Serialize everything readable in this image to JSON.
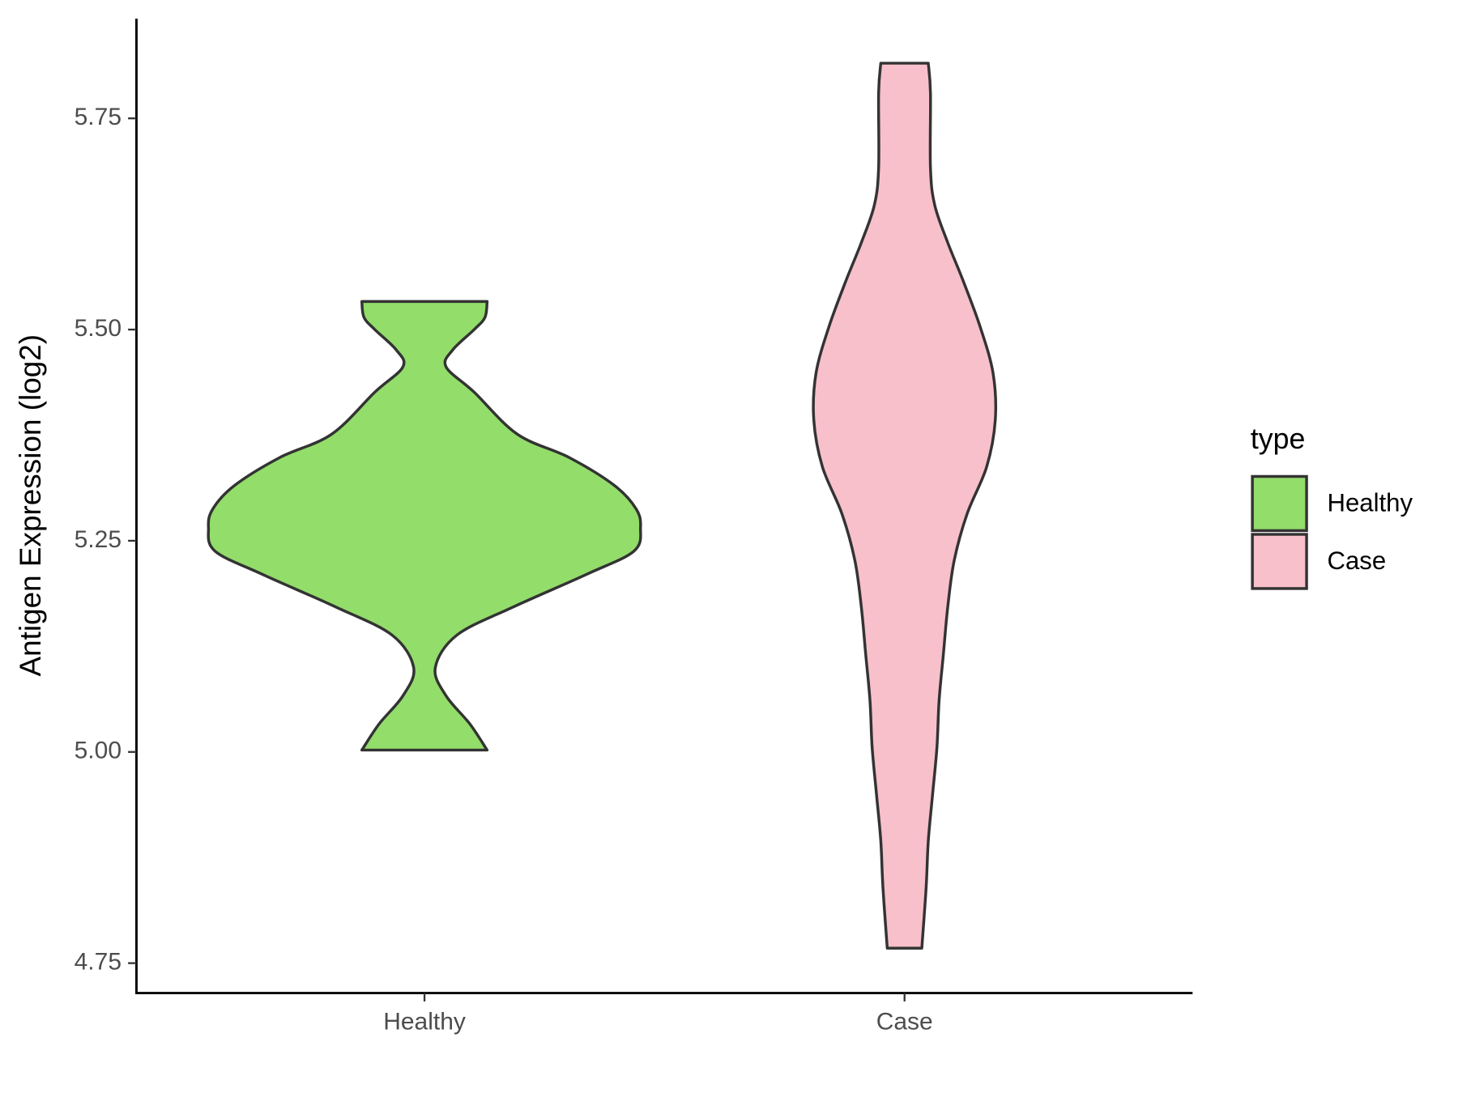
{
  "chart_data": {
    "type": "violin",
    "ylabel": "Antigen Expression (log2)",
    "legend_title": "type",
    "categories": [
      "Healthy",
      "Case"
    ],
    "series": [
      {
        "name": "Healthy",
        "color": "#93dd6b",
        "y": [
          5.5332,
          5.5144,
          5.5,
          5.4757,
          5.4558,
          5.4259,
          5.3761,
          5.3485,
          5.3153,
          5.2876,
          5.2655,
          5.2378,
          5.2102,
          5.1715,
          5.1383,
          5.0996,
          5.0664,
          5.0332,
          5.0022
        ],
        "density": [
          0.29,
          0.28,
          0.23,
          0.13,
          0.1,
          0.23,
          0.43,
          0.67,
          0.88,
          0.98,
          1.0,
          0.97,
          0.75,
          0.41,
          0.15,
          0.05,
          0.1,
          0.21,
          0.29
        ]
      },
      {
        "name": "Case",
        "color": "#f7c0cb",
        "y": [
          5.8153,
          5.7799,
          5.6914,
          5.6471,
          5.6029,
          5.5586,
          5.5033,
          5.448,
          5.3927,
          5.3374,
          5.2821,
          5.2268,
          5.1715,
          5.1162,
          5.0608,
          5.0055,
          4.9502,
          4.8949,
          4.8396,
          4.7677
        ],
        "density": [
          0.11,
          0.12,
          0.12,
          0.14,
          0.2,
          0.27,
          0.35,
          0.41,
          0.42,
          0.38,
          0.29,
          0.23,
          0.2,
          0.18,
          0.16,
          0.15,
          0.13,
          0.11,
          0.1,
          0.08
        ]
      }
    ],
    "ylim": [
      4.7146,
      5.868
    ],
    "yticks": [
      4.75,
      {
        "value": 5.0,
        "label": "5.00"
      },
      5.25,
      {
        "value": 5.5,
        "label": "5.50"
      },
      5.75
    ],
    "legend_position": "right"
  }
}
